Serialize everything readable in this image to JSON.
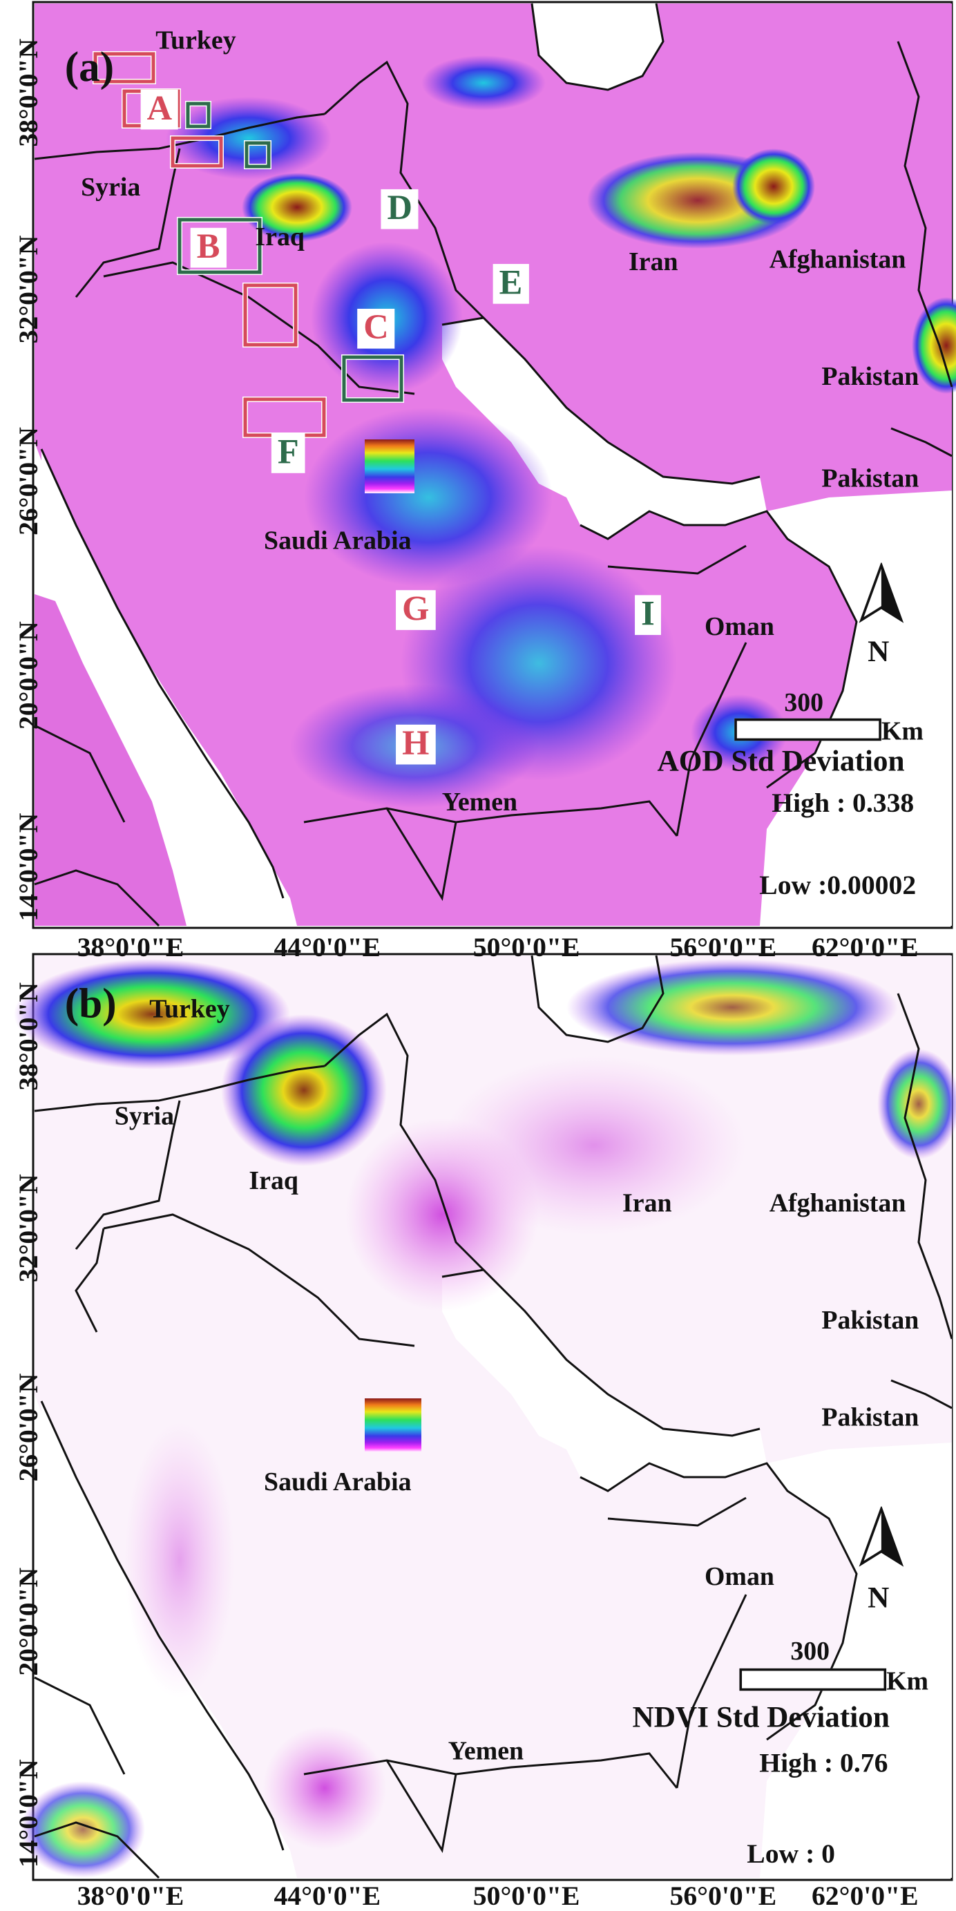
{
  "colors": {
    "map_base": "#e67ce6",
    "ndvi_base": "#fbf2fb",
    "sea": "#ffffff",
    "border": "#111111",
    "box_red": "#d64a5a",
    "box_green": "#2d6b4b",
    "label_red": "#d64a5a",
    "label_green": "#2d6b4b"
  },
  "grid": {
    "lat_labels": [
      "38°0'0\"N",
      "32°0'0\"N",
      "26°0'0\"N",
      "20°0'0\"N",
      "14°0'0\"N"
    ],
    "lon_labels": [
      "38°0'0\"E",
      "44°0'0\"E",
      "50°0'0\"E",
      "56°0'0\"E",
      "62°0'0\"E"
    ]
  },
  "panel_a": {
    "tag": "(a)",
    "countries": {
      "turkey": "Turkey",
      "syria": "Syria",
      "iraq": "Iraq",
      "iran": "Iran",
      "afghanistan": "Afghanistan",
      "pakistan_1": "Pakistan",
      "pakistan_2": "Pakistan",
      "saudi_arabia": "Saudi Arabia",
      "oman": "Oman",
      "yemen": "Yemen"
    },
    "regions": {
      "a": {
        "label": "A",
        "color": "red"
      },
      "b": {
        "label": "B",
        "color": "red"
      },
      "c": {
        "label": "C",
        "color": "red"
      },
      "d": {
        "label": "D",
        "color": "green"
      },
      "e": {
        "label": "E",
        "color": "green"
      },
      "f": {
        "label": "F",
        "color": "green"
      },
      "g": {
        "label": "G",
        "color": "red"
      },
      "h": {
        "label": "H",
        "color": "red"
      },
      "i": {
        "label": "I",
        "color": "green"
      }
    },
    "north_label": "N",
    "scale_value": "300",
    "scale_unit": "Km",
    "legend": {
      "title": "AOD Std Deviation",
      "high": "High : 0.338",
      "low": "Low :0.00002",
      "high_value": 0.338,
      "low_value": 2e-05
    }
  },
  "panel_b": {
    "tag": "(b)",
    "countries": {
      "turkey": "Turkey",
      "syria": "Syria",
      "iraq": "Iraq",
      "iran": "Iran",
      "afghanistan": "Afghanistan",
      "pakistan_1": "Pakistan",
      "pakistan_2": "Pakistan",
      "saudi_arabia": "Saudi Arabia",
      "oman": "Oman",
      "yemen": "Yemen"
    },
    "north_label": "N",
    "scale_value": "300",
    "scale_unit": "Km",
    "legend": {
      "title": "NDVI Std Deviation",
      "high": "High : 0.76",
      "low": "Low : 0",
      "high_value": 0.76,
      "low_value": 0
    }
  }
}
